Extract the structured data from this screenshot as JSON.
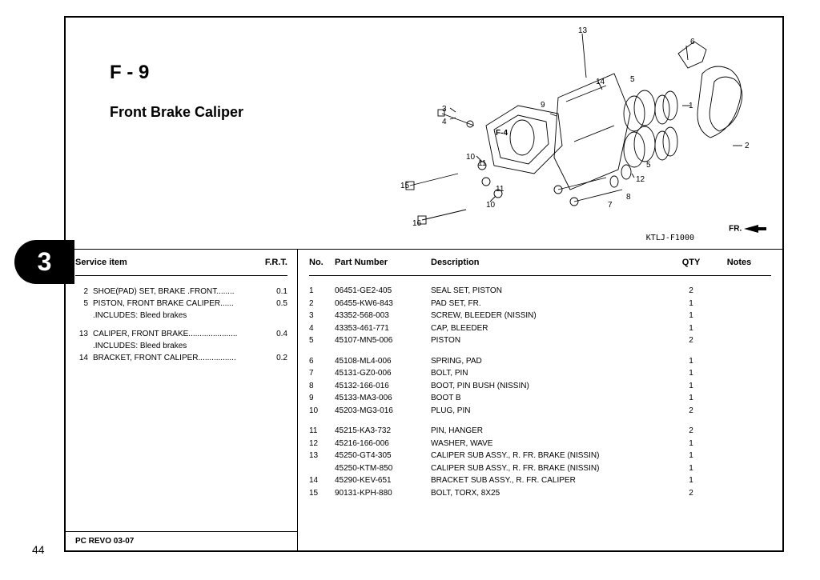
{
  "section": {
    "code": "F - 9",
    "name": "Front Brake Caliper",
    "diagram_ref": "KTLJ-F1000",
    "direction_label": "FR.",
    "inner_ref": "F-4",
    "tab_number": "3",
    "page_number": "44",
    "footer": "PC REVO  03-07"
  },
  "service_header": {
    "item": "Service item",
    "frt": "F.R.T."
  },
  "service_items": [
    {
      "group": [
        {
          "no": "2",
          "desc": "SHOE(PAD) SET, BRAKE .FRONT........",
          "frt": "0.1"
        },
        {
          "no": "5",
          "desc": "PISTON, FRONT BRAKE CALIPER......",
          "frt": "0.5"
        },
        {
          "no": "",
          "desc": ".INCLUDES: Bleed brakes",
          "frt": ""
        }
      ]
    },
    {
      "group": [
        {
          "no": "13",
          "desc": "CALIPER, FRONT BRAKE......................",
          "frt": "0.4"
        },
        {
          "no": "",
          "desc": ".INCLUDES: Bleed brakes",
          "frt": ""
        },
        {
          "no": "14",
          "desc": "BRACKET, FRONT CALIPER.................",
          "frt": "0.2"
        }
      ]
    }
  ],
  "parts_header": {
    "no": "No.",
    "part": "Part Number",
    "desc": "Description",
    "qty": "QTY",
    "notes": "Notes"
  },
  "parts": [
    {
      "group": [
        {
          "no": "1",
          "part": "06451-GE2-405",
          "desc": "SEAL SET, PISTON",
          "qty": "2"
        },
        {
          "no": "2",
          "part": "06455-KW6-843",
          "desc": "PAD SET, FR.",
          "qty": "1"
        },
        {
          "no": "3",
          "part": "43352-568-003",
          "desc": "SCREW, BLEEDER  (NISSIN)",
          "qty": "1"
        },
        {
          "no": "4",
          "part": "43353-461-771",
          "desc": "CAP, BLEEDER",
          "qty": "1"
        },
        {
          "no": "5",
          "part": "45107-MN5-006",
          "desc": "PISTON",
          "qty": "2"
        }
      ]
    },
    {
      "group": [
        {
          "no": "6",
          "part": "45108-ML4-006",
          "desc": "SPRING, PAD",
          "qty": "1"
        },
        {
          "no": "7",
          "part": "45131-GZ0-006",
          "desc": "BOLT, PIN",
          "qty": "1"
        },
        {
          "no": "8",
          "part": "45132-166-016",
          "desc": "BOOT, PIN BUSH (NISSIN)",
          "qty": "1"
        },
        {
          "no": "9",
          "part": "45133-MA3-006",
          "desc": "BOOT B",
          "qty": "1"
        },
        {
          "no": "10",
          "part": "45203-MG3-016",
          "desc": "PLUG, PIN",
          "qty": "2"
        }
      ]
    },
    {
      "group": [
        {
          "no": "11",
          "part": "45215-KA3-732",
          "desc": "PIN, HANGER",
          "qty": "2"
        },
        {
          "no": "12",
          "part": "45216-166-006",
          "desc": "WASHER, WAVE",
          "qty": "1"
        },
        {
          "no": "13",
          "part": "45250-GT4-305",
          "desc": "CALIPER SUB ASSY., R. FR. BRAKE (NISSIN)",
          "qty": "1"
        },
        {
          "no": "",
          "part": "45250-KTM-850",
          "desc": "CALIPER SUB ASSY., R. FR. BRAKE (NISSIN)",
          "qty": "1"
        },
        {
          "no": "14",
          "part": "45290-KEV-651",
          "desc": "BRACKET SUB ASSY., R. FR. CALIPER",
          "qty": "1"
        },
        {
          "no": "15",
          "part": "90131-KPH-880",
          "desc": "BOLT, TORX, 8X25",
          "qty": "2"
        }
      ]
    }
  ],
  "callouts": [
    "1",
    "2",
    "3",
    "4",
    "5",
    "6",
    "7",
    "8",
    "9",
    "10",
    "11",
    "12",
    "13",
    "14",
    "15",
    "16"
  ],
  "diagram_style": {
    "stroke": "#000000",
    "stroke_width": 0.8,
    "background": "#ffffff"
  }
}
